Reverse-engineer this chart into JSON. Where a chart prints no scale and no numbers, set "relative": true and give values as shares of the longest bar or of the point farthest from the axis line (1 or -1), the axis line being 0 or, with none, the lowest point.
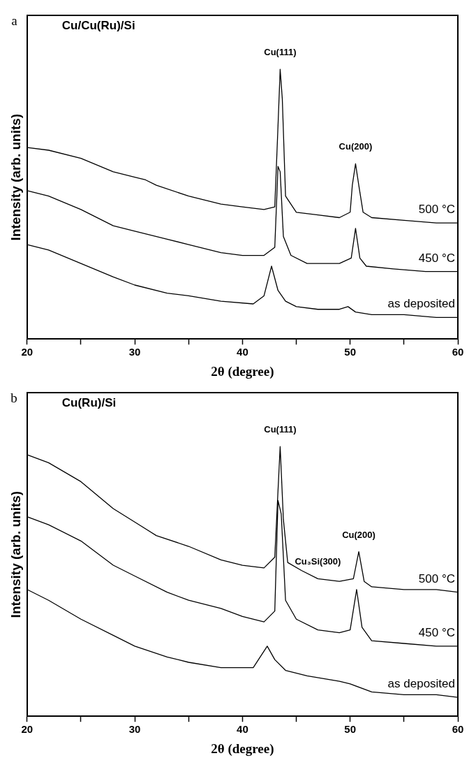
{
  "chart_data": [
    {
      "type": "line",
      "relative": true,
      "xlabel": "2θ (degree)",
      "ylabel": "Intensity (arb. units)",
      "xlim": [
        20,
        60
      ],
      "xticks": [
        20,
        {
          "value": 25,
          "label": null
        },
        30,
        {
          "value": 35,
          "label": null
        },
        40,
        {
          "value": 45,
          "label": null
        },
        50,
        {
          "value": 55,
          "label": null
        },
        60
      ],
      "grid": false,
      "legend": false,
      "marker": "none",
      "line_style": "solid",
      "annotations": [
        "a",
        "Cu/Cu(Ru)/Si",
        {
          "text": "Cu(111)",
          "x": 43.5,
          "y": 1.0
        },
        {
          "text": "Cu(200)",
          "x": 50.5,
          "y": 0.65
        }
      ],
      "series": [
        {
          "name": "500 °C",
          "color": "#000000",
          "x": [
            20,
            22,
            25,
            28,
            30,
            31,
            32,
            35,
            38,
            40,
            42,
            43,
            43.3,
            43.5,
            43.7,
            44,
            45,
            47,
            49,
            50,
            50.2,
            50.5,
            50.8,
            51.2,
            52,
            55,
            58,
            60
          ],
          "values": [
            0.71,
            0.7,
            0.67,
            0.62,
            0.6,
            0.59,
            0.57,
            0.53,
            0.5,
            0.49,
            0.48,
            0.49,
            0.79,
            1.0,
            0.89,
            0.53,
            0.47,
            0.46,
            0.45,
            0.47,
            0.57,
            0.65,
            0.57,
            0.47,
            0.45,
            0.44,
            0.43,
            0.43
          ]
        },
        {
          "name": "450 °C",
          "color": "#000000",
          "x": [
            20,
            22,
            25,
            28,
            30,
            33,
            35,
            38,
            40,
            42,
            43,
            43.3,
            43.5,
            43.8,
            44.5,
            46,
            49,
            50.1,
            50.5,
            50.9,
            51.5,
            54,
            57,
            60
          ],
          "values": [
            0.55,
            0.53,
            0.48,
            0.42,
            0.4,
            0.37,
            0.35,
            0.32,
            0.31,
            0.31,
            0.34,
            0.64,
            0.62,
            0.38,
            0.31,
            0.28,
            0.28,
            0.3,
            0.41,
            0.3,
            0.27,
            0.26,
            0.25,
            0.25
          ]
        },
        {
          "name": "as deposited",
          "color": "#000000",
          "x": [
            20,
            22,
            25,
            28,
            30,
            33,
            35,
            38,
            41,
            42,
            42.7,
            43.3,
            44,
            45,
            47,
            49,
            49.8,
            50.5,
            52,
            55,
            58,
            60
          ],
          "values": [
            0.35,
            0.33,
            0.28,
            0.23,
            0.2,
            0.17,
            0.16,
            0.14,
            0.13,
            0.16,
            0.27,
            0.18,
            0.14,
            0.12,
            0.11,
            0.11,
            0.12,
            0.1,
            0.09,
            0.09,
            0.08,
            0.08
          ]
        }
      ]
    },
    {
      "type": "line",
      "relative": true,
      "xlabel": "2θ (degree)",
      "ylabel": "Intensity (arb. units)",
      "xlim": [
        20,
        60
      ],
      "xticks": [
        20,
        {
          "value": 25,
          "label": null
        },
        30,
        {
          "value": 35,
          "label": null
        },
        40,
        {
          "value": 45,
          "label": null
        },
        50,
        {
          "value": 55,
          "label": null
        },
        60
      ],
      "grid": false,
      "legend": false,
      "marker": "none",
      "line_style": "solid",
      "annotations": [
        "b",
        "Cu(Ru)/Si",
        {
          "text": "Cu(111)",
          "x": 43.5,
          "y": 1.0
        },
        {
          "text": "Cu₃Si(300)",
          "x": 47,
          "y": 0.51
        },
        {
          "text": "Cu(200)",
          "x": 50.8,
          "y": 0.61
        }
      ],
      "series": [
        {
          "name": "500 °C",
          "color": "#000000",
          "x": [
            20,
            22,
            25,
            28,
            30,
            32,
            35,
            38,
            40,
            42,
            43,
            43.5,
            43.8,
            44.2,
            45.5,
            47,
            49,
            50.3,
            50.8,
            51.3,
            52,
            55,
            58,
            60
          ],
          "values": [
            0.97,
            0.94,
            0.87,
            0.77,
            0.72,
            0.67,
            0.63,
            0.58,
            0.56,
            0.55,
            0.59,
            1.0,
            0.73,
            0.57,
            0.54,
            0.51,
            0.5,
            0.51,
            0.61,
            0.5,
            0.48,
            0.47,
            0.47,
            0.46
          ]
        },
        {
          "name": "450 °C",
          "color": "#000000",
          "x": [
            20,
            22,
            25,
            28,
            30,
            33,
            35,
            38,
            40,
            42,
            43,
            43.3,
            43.6,
            44,
            45,
            47,
            49,
            50,
            50.6,
            51.1,
            52,
            55,
            58,
            60
          ],
          "values": [
            0.74,
            0.71,
            0.65,
            0.56,
            0.52,
            0.46,
            0.43,
            0.4,
            0.37,
            0.35,
            0.39,
            0.8,
            0.75,
            0.43,
            0.36,
            0.32,
            0.31,
            0.32,
            0.47,
            0.33,
            0.28,
            0.27,
            0.26,
            0.26
          ]
        },
        {
          "name": "as deposited",
          "color": "#000000",
          "x": [
            20,
            22,
            25,
            28,
            30,
            33,
            35,
            38,
            41,
            42.3,
            43,
            44,
            46,
            49,
            50,
            52,
            55,
            58,
            60
          ],
          "values": [
            0.47,
            0.43,
            0.36,
            0.3,
            0.26,
            0.22,
            0.2,
            0.18,
            0.18,
            0.26,
            0.21,
            0.17,
            0.15,
            0.13,
            0.12,
            0.09,
            0.08,
            0.08,
            0.07
          ]
        }
      ]
    }
  ]
}
